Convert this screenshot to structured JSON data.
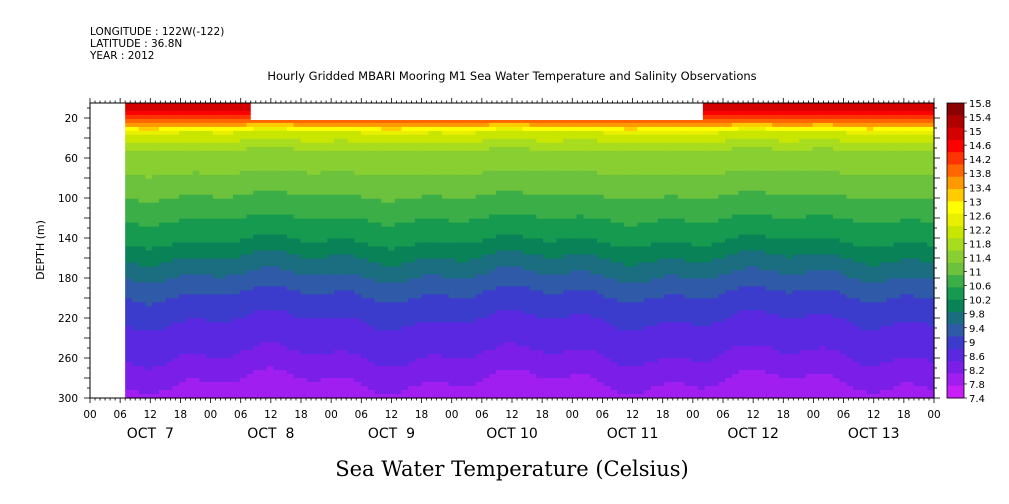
{
  "header": {
    "longitude": "LONGITUDE : 122W(-122)",
    "latitude": "LATITUDE : 36.8N",
    "year": "YEAR : 2012"
  },
  "chart_data": {
    "type": "heatmap",
    "title": "Hourly Gridded MBARI Mooring M1 Sea Water Temperature and Salinity Observations",
    "xlabel": "Sea Water Temperature (Celsius)",
    "ylabel": "DEPTH (m)",
    "x_hour_ticks": [
      "00",
      "06",
      "12",
      "18",
      "00",
      "06",
      "12",
      "18",
      "00",
      "06",
      "12",
      "18",
      "00",
      "06",
      "12",
      "18",
      "00",
      "06",
      "12",
      "18",
      "00",
      "06",
      "12",
      "18",
      "00",
      "06",
      "12",
      "18",
      "00"
    ],
    "x_day_labels": [
      "OCT  7",
      "OCT  8",
      "OCT  9",
      "OCT 10",
      "OCT 11",
      "OCT 12",
      "OCT 13"
    ],
    "x_range_hours": [
      0,
      168
    ],
    "data_start_hour": 7,
    "y_ticks": [
      20,
      60,
      100,
      140,
      180,
      220,
      260,
      300
    ],
    "y_range": [
      300,
      5
    ],
    "colorbar_labels": [
      "15.8",
      "15.4",
      "15",
      "14.6",
      "14.2",
      "13.8",
      "13.4",
      "13",
      "12.6",
      "12.2",
      "11.8",
      "11.4",
      "11",
      "10.6",
      "10.2",
      "9.8",
      "9.4",
      "9",
      "8.6",
      "8.2",
      "7.8",
      "7.4"
    ],
    "colorbar_colors": [
      "#8b0000",
      "#b00000",
      "#d40000",
      "#ff0000",
      "#ff3300",
      "#ff6600",
      "#ff9900",
      "#ffcc00",
      "#ffff00",
      "#e8f000",
      "#c8e600",
      "#a8dc1e",
      "#8acf32",
      "#6cc23c",
      "#3cae48",
      "#169a50",
      "#0a8258",
      "#1a6e80",
      "#2e5aa8",
      "#3c3ccc",
      "#5a28e0",
      "#7a1ee8",
      "#a01ef0",
      "#c81ef8"
    ],
    "series": [
      {
        "depth": 10,
        "temperature": 15.2
      },
      {
        "depth": 25,
        "temperature": 13.6
      },
      {
        "depth": 32,
        "temperature": 12.4
      },
      {
        "depth": 50,
        "temperature": 11.6
      },
      {
        "depth": 80,
        "temperature": 11.1
      },
      {
        "depth": 110,
        "temperature": 10.6
      },
      {
        "depth": 140,
        "temperature": 10.1
      },
      {
        "depth": 170,
        "temperature": 9.4
      },
      {
        "depth": 200,
        "temperature": 8.8
      },
      {
        "depth": 230,
        "temperature": 8.4
      },
      {
        "depth": 260,
        "temperature": 8.1
      },
      {
        "depth": 285,
        "temperature": 7.7
      },
      {
        "depth": 300,
        "temperature": 7.5
      }
    ],
    "missing_surface_gap_hours": [
      32,
      122
    ],
    "missing_surface_gap_depth": [
      5,
      22
    ]
  }
}
